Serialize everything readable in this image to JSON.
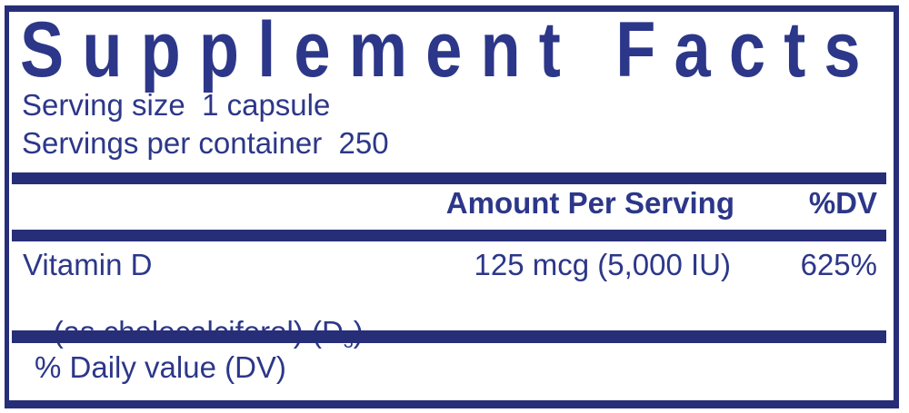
{
  "label": {
    "title": "Supplement Facts",
    "serving_size": "Serving size  1 capsule",
    "servings_per_container": "Servings per container  250",
    "header": {
      "amount": "Amount Per Serving",
      "dv": "%DV"
    },
    "rows": [
      {
        "name": "Vitamin D",
        "detail_prefix": "(as cholecalciferol) (D",
        "detail_sub": "3",
        "detail_suffix": ")",
        "amount": "125 mcg (5,000 IU)",
        "dv": "625%"
      }
    ],
    "footnote": "% Daily value (DV)",
    "colors": {
      "navy": "#272e78",
      "text": "#2c3789",
      "background": "#ffffff"
    }
  }
}
